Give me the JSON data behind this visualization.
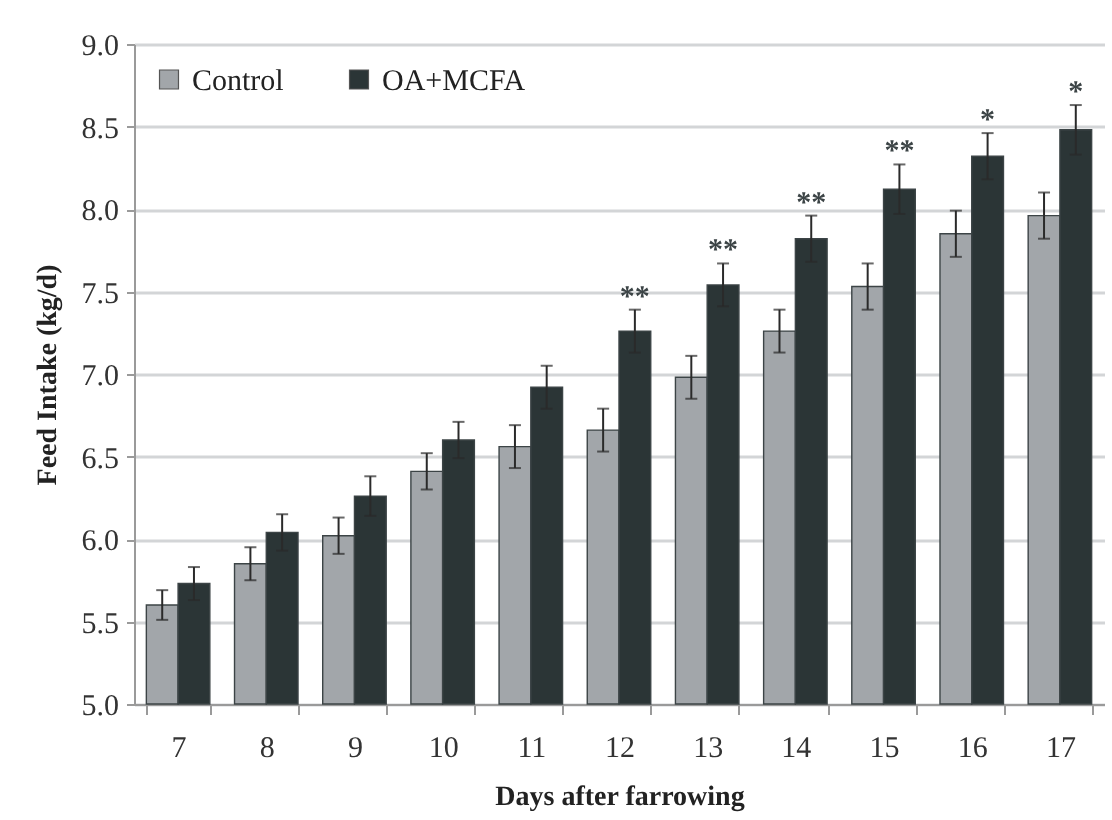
{
  "chart_data": {
    "type": "bar",
    "xlabel": "Days after farrowing",
    "ylabel": "Feed Intake (kg/d)",
    "categories": [
      "7",
      "8",
      "9",
      "10",
      "11",
      "12",
      "13",
      "14",
      "15",
      "16",
      "17"
    ],
    "series": [
      {
        "name": "Control",
        "color": "#a2a6aa",
        "values": [
          5.6,
          5.85,
          6.02,
          6.41,
          6.56,
          6.66,
          6.98,
          7.26,
          7.53,
          7.85,
          7.96
        ],
        "errors": [
          0.09,
          0.1,
          0.11,
          0.11,
          0.13,
          0.13,
          0.13,
          0.13,
          0.14,
          0.14,
          0.14
        ]
      },
      {
        "name": "OA+MCFA",
        "color": "#2b3536",
        "values": [
          5.73,
          6.04,
          6.26,
          6.6,
          6.92,
          7.26,
          7.54,
          7.82,
          8.12,
          8.32,
          8.48
        ],
        "errors": [
          0.1,
          0.11,
          0.12,
          0.11,
          0.13,
          0.13,
          0.13,
          0.14,
          0.15,
          0.14,
          0.15
        ]
      }
    ],
    "ylim": [
      5,
      9
    ],
    "yticks": [
      {
        "value": 5,
        "label": "5.0"
      },
      {
        "value": 5.5,
        "label": "5.5"
      },
      {
        "value": 6,
        "label": "6.0"
      },
      {
        "value": 6.5,
        "label": "6.5"
      },
      {
        "value": 7,
        "label": "7.0"
      },
      {
        "value": 7.5,
        "label": "7.5"
      },
      {
        "value": 8,
        "label": "8.0"
      },
      {
        "value": 8.5,
        "label": "8.5"
      },
      {
        "value": 9,
        "label": "9.0"
      }
    ],
    "grid": "y",
    "legend": "top left",
    "annotations": [
      {
        "text": "**",
        "x": "12",
        "y": 7.39
      },
      {
        "text": "**",
        "x": "13",
        "y": 7.67
      },
      {
        "text": "**",
        "x": "14",
        "y": 7.96
      },
      {
        "text": "**",
        "x": "15",
        "y": 8.27
      },
      {
        "text": "*",
        "x": "16",
        "y": 8.46
      },
      {
        "text": "*",
        "x": "17",
        "y": 8.63
      }
    ]
  }
}
